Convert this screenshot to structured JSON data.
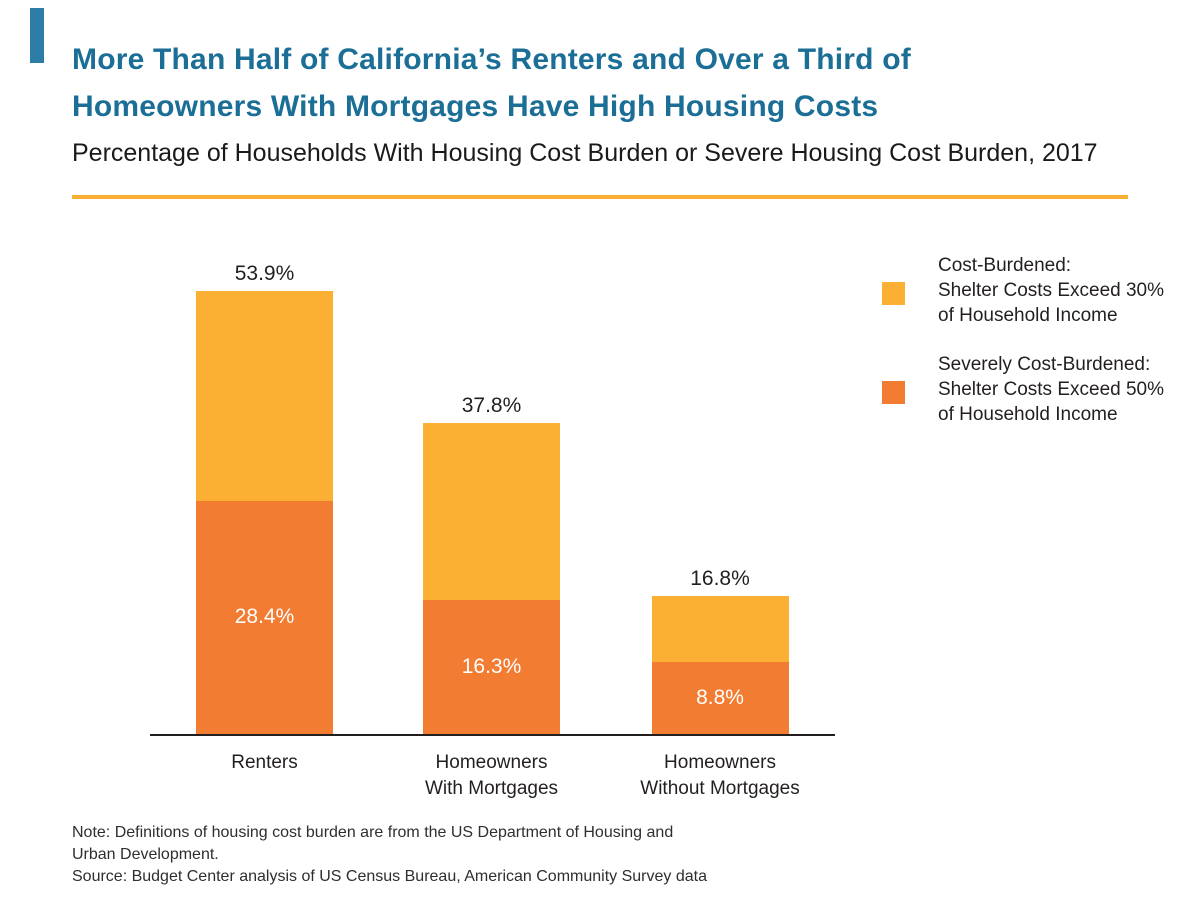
{
  "header": {
    "title_line1": "More Than Half of California’s Renters and Over a Third of",
    "title_line2": "Homeowners With Mortgages Have High Housing Costs",
    "subtitle": "Percentage of Households With Housing Cost Burden or Severe Housing Cost Burden, 2017"
  },
  "colors": {
    "accent_blue": "#2e7ca8",
    "title_teal": "#1b6e96",
    "divider_gold": "#fbb034",
    "cost_burdened_yellow": "#fbb034",
    "severely_cost_burdened_orange": "#f37c33",
    "axis_black": "#231f20",
    "inside_label_white": "#ffffff"
  },
  "chart_data": {
    "type": "bar",
    "stacked": true,
    "categories": [
      "Renters",
      "Homeowners With Mortgages",
      "Homeowners Without Mortgages"
    ],
    "categories_lines": [
      [
        "Renters"
      ],
      [
        "Homeowners",
        "With Mortgages"
      ],
      [
        "Homeowners",
        "Without Mortgages"
      ]
    ],
    "series": [
      {
        "name": "Severely Cost-Burdened: Shelter Costs Exceed 50% of Household Income",
        "color": "#f37c33",
        "values": [
          28.4,
          16.3,
          8.8
        ]
      },
      {
        "name": "Cost-Burdened: Shelter Costs Exceed 30% of Household Income",
        "color": "#fbb034",
        "values": [
          25.5,
          21.5,
          8.0
        ]
      }
    ],
    "totals": [
      53.9,
      37.8,
      16.8
    ],
    "total_labels": [
      "53.9%",
      "37.8%",
      "16.8%"
    ],
    "severe_labels": [
      "28.4%",
      "16.3%",
      "8.8%"
    ],
    "title": "Percentage of Households With Housing Cost Burden or Severe Housing Cost Burden, 2017",
    "xlabel": "",
    "ylabel": "",
    "ylim": [
      0,
      60
    ],
    "grid": false,
    "legend_position": "right"
  },
  "legend": {
    "items": [
      {
        "swatch_color": "#fbb034",
        "lines": [
          "Cost-Burdened:",
          "Shelter Costs Exceed 30%",
          "of Household Income"
        ]
      },
      {
        "swatch_color": "#f37c33",
        "lines": [
          "Severely Cost-Burdened:",
          "Shelter Costs Exceed 50%",
          "of Household Income"
        ]
      }
    ]
  },
  "note": {
    "lines": [
      "Note: Definitions of housing cost burden are from the US Department of Housing and",
      "Urban Development.",
      "Source: Budget Center analysis of US Census Bureau, American Community Survey data"
    ]
  }
}
